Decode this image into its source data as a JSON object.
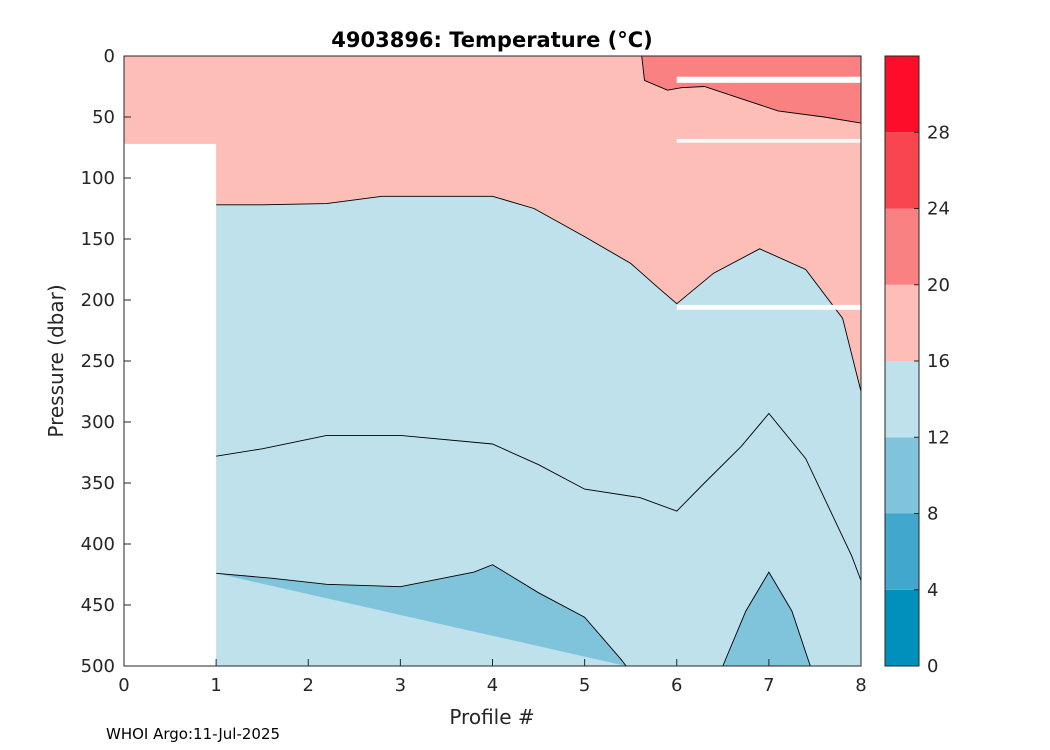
{
  "chart_data": {
    "type": "heatmap",
    "title": "4903896:  Temperature (°C)",
    "xlabel": "Profile #",
    "ylabel": "Pressure (dbar)",
    "xlim": [
      0,
      8
    ],
    "ylim": [
      0,
      500
    ],
    "y_reversed": true,
    "xticks": [
      "0",
      "1",
      "2",
      "3",
      "4",
      "5",
      "6",
      "7",
      "8"
    ],
    "yticks": [
      "0",
      "50",
      "100",
      "150",
      "200",
      "250",
      "300",
      "350",
      "400",
      "450",
      "500"
    ],
    "grid": false,
    "colorbar": {
      "levels": [
        0,
        4,
        8,
        12,
        16,
        20,
        24,
        28,
        32
      ],
      "tick_labels": [
        "0",
        "4",
        "8",
        "12",
        "16",
        "20",
        "24",
        "28"
      ],
      "colors": [
        "#0090bb",
        "#42a7cc",
        "#80c4dc",
        "#bfe1ec",
        "#fcbeb7",
        "#fa8181",
        "#f94550",
        "#fd0d2a"
      ]
    },
    "contour_lines": [
      {
        "level": 20,
        "points": [
          [
            5.62,
            0
          ],
          [
            5.65,
            20
          ],
          [
            5.9,
            28
          ],
          [
            6.05,
            26
          ],
          [
            6.3,
            25
          ],
          [
            6.7,
            35
          ],
          [
            7.1,
            45
          ],
          [
            7.6,
            50
          ],
          [
            8,
            55
          ]
        ]
      },
      {
        "level": 16,
        "points": [
          [
            1,
            122
          ],
          [
            1.5,
            122
          ],
          [
            2.2,
            121
          ],
          [
            2.8,
            115
          ],
          [
            4,
            115
          ],
          [
            4.45,
            125
          ],
          [
            5,
            148
          ],
          [
            5.5,
            170
          ],
          [
            5.8,
            190
          ],
          [
            6,
            203
          ],
          [
            6.4,
            178
          ],
          [
            6.9,
            158
          ],
          [
            7.4,
            175
          ],
          [
            7.8,
            215
          ],
          [
            8,
            275
          ]
        ]
      },
      {
        "level": 12,
        "points": [
          [
            1,
            328
          ],
          [
            1.5,
            322
          ],
          [
            2.2,
            311
          ],
          [
            3,
            311
          ],
          [
            4,
            318
          ],
          [
            4.5,
            335
          ],
          [
            5,
            355
          ],
          [
            5.6,
            362
          ],
          [
            6,
            373
          ],
          [
            6.3,
            350
          ],
          [
            6.7,
            320
          ],
          [
            7,
            293
          ],
          [
            7.4,
            330
          ],
          [
            7.9,
            410
          ],
          [
            8,
            430
          ]
        ]
      },
      {
        "level": 8,
        "points": [
          [
            1,
            424
          ],
          [
            1.6,
            428
          ],
          [
            2.2,
            433
          ],
          [
            3,
            435
          ],
          [
            3.8,
            423
          ],
          [
            4,
            417
          ],
          [
            4.5,
            440
          ],
          [
            5,
            460
          ],
          [
            5.4,
            495
          ],
          [
            5.45,
            500
          ]
        ]
      },
      {
        "level": 8,
        "points": [
          [
            6.5,
            500
          ],
          [
            6.75,
            455
          ],
          [
            7,
            423
          ],
          [
            7.25,
            455
          ],
          [
            7.45,
            500
          ]
        ]
      }
    ],
    "missing_regions": [
      {
        "x": [
          0,
          1
        ],
        "y": [
          72,
          500
        ]
      },
      {
        "x": [
          6,
          8
        ],
        "y": [
          17,
          22
        ]
      },
      {
        "x": [
          6,
          8
        ],
        "y": [
          68,
          71
        ]
      },
      {
        "x": [
          6,
          8
        ],
        "y": [
          204,
          208
        ]
      }
    ]
  },
  "footer": "WHOI Argo:11-Jul-2025"
}
